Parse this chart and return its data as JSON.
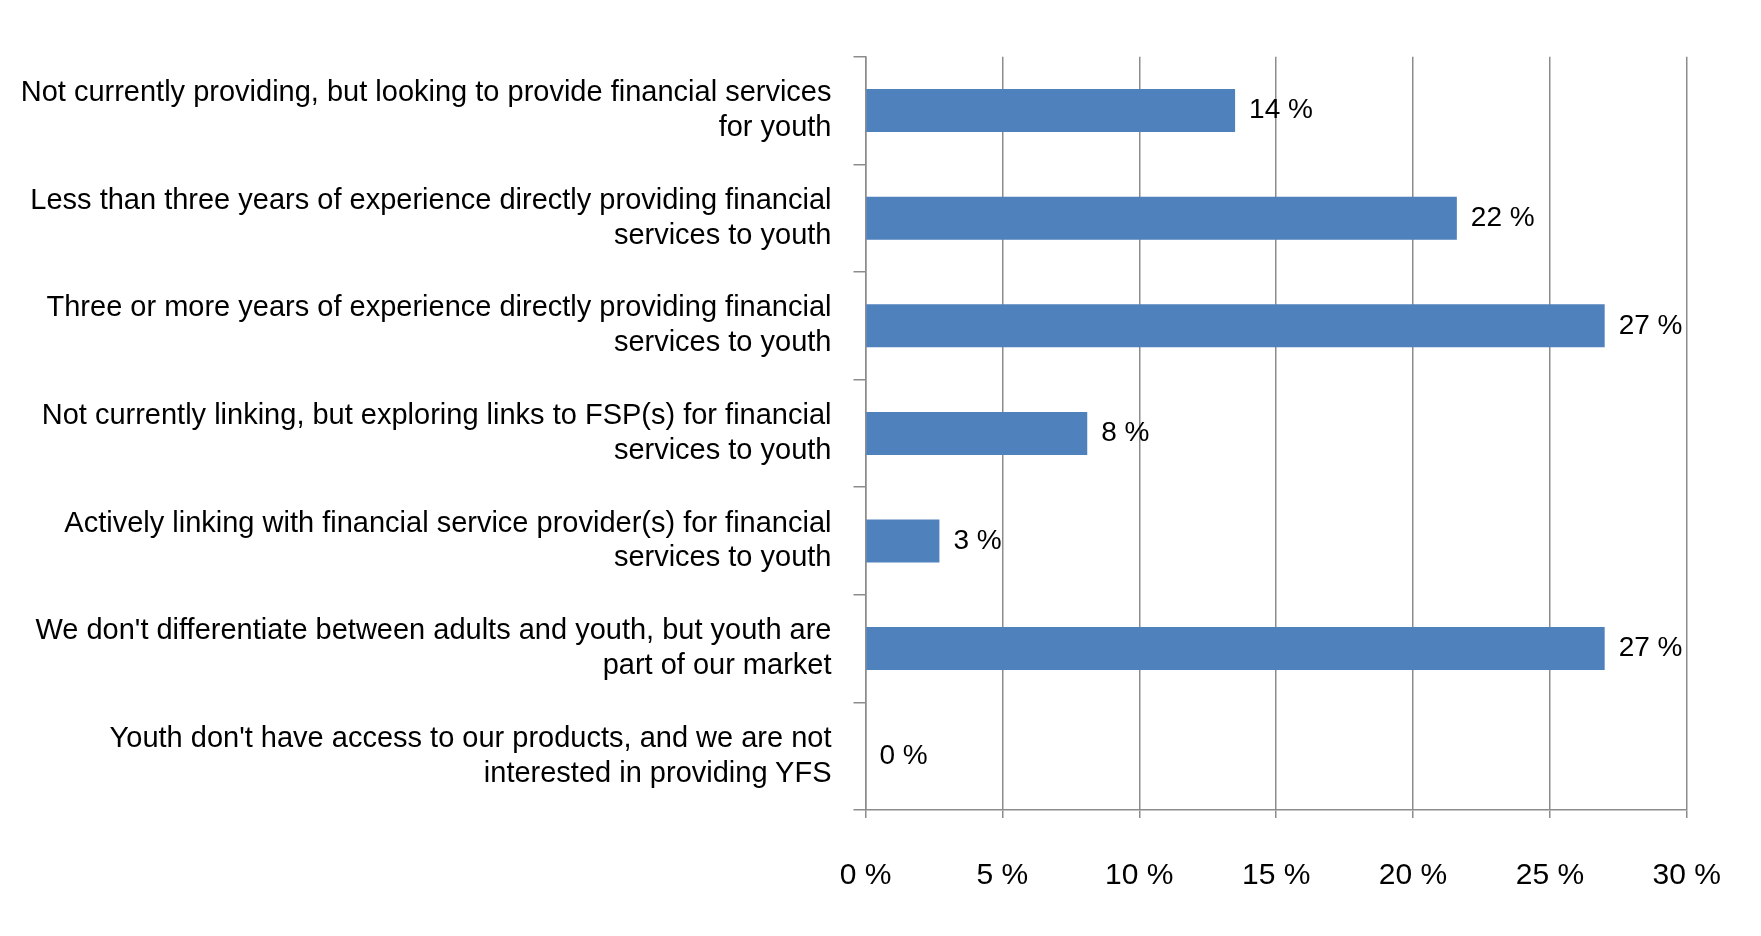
{
  "chart_data": {
    "type": "bar",
    "orientation": "horizontal",
    "categories": [
      "Not currently providing, but looking to provide financial services for youth",
      "Less than three years of experience directly providing financial services to youth",
      "Three or more years of experience directly providing financial services to youth",
      "Not currently linking, but exploring links to FSP(s) for financial services to youth",
      "Actively linking with financial service provider(s) for financial services to youth",
      "We don't differentiate between adults and youth, but youth are part of our market",
      "Youth don't have access to our products, and we are not interested in providing YFS"
    ],
    "values": [
      13.5,
      21.6,
      27.0,
      8.1,
      2.7,
      27.0,
      0
    ],
    "value_labels": [
      "14 %",
      "22 %",
      "27 %",
      "8 %",
      "3 %",
      "27 %",
      "0 %"
    ],
    "color": "#4f81bd",
    "xlim": [
      0,
      30
    ],
    "xticks": [
      {
        "value": 0,
        "label": "0 %"
      },
      {
        "value": 5,
        "label": "5 %"
      },
      {
        "value": 10,
        "label": "10 %"
      },
      {
        "value": 15,
        "label": "15 %"
      },
      {
        "value": 20,
        "label": "20 %"
      },
      {
        "value": 25,
        "label": "25 %"
      },
      {
        "value": 30,
        "label": "30 %"
      }
    ],
    "grid": "x",
    "legend": false
  }
}
